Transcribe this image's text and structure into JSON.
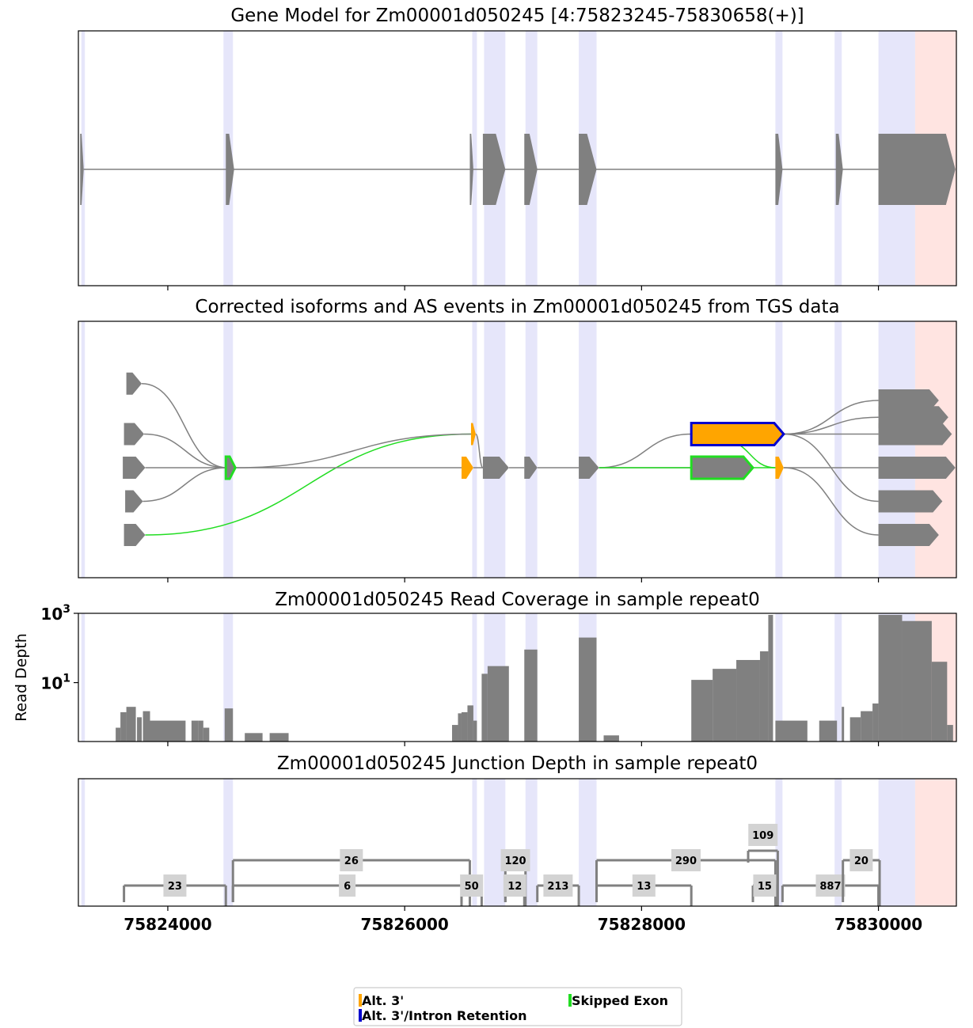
{
  "chart_data": {
    "type": "gene_model_multipanel",
    "x_axis": {
      "xlim": [
        75823245,
        75830658
      ],
      "ticks": [
        75824000,
        75826000,
        75828000,
        75830000
      ],
      "tick_labels": [
        "75824000",
        "75826000",
        "75828000",
        "75830000"
      ]
    },
    "colors": {
      "exon": "#808080",
      "intron_line": "#808080",
      "alt3": "#FFA500",
      "alt3_intron_retention": "#0000CD",
      "skipped_exon": "#22DD22",
      "highlight_blue": "#E6E6FA",
      "highlight_red": "#FFE4E1",
      "junction_label_bg": "#D3D3D3"
    },
    "highlights": [
      {
        "start": 75823270,
        "end": 75823300,
        "color": "blue"
      },
      {
        "start": 75824470,
        "end": 75824550,
        "color": "blue"
      },
      {
        "start": 75826570,
        "end": 75826610,
        "color": "blue"
      },
      {
        "start": 75826670,
        "end": 75826850,
        "color": "blue"
      },
      {
        "start": 75827020,
        "end": 75827120,
        "color": "blue"
      },
      {
        "start": 75827470,
        "end": 75827620,
        "color": "blue"
      },
      {
        "start": 75829130,
        "end": 75829190,
        "color": "blue"
      },
      {
        "start": 75829630,
        "end": 75829690,
        "color": "blue"
      },
      {
        "start": 75830000,
        "end": 75830310,
        "color": "blue"
      },
      {
        "start": 75830310,
        "end": 75830658,
        "color": "red"
      }
    ],
    "panels": [
      {
        "id": "gene_model",
        "title": "Gene Model for Zm00001d050245 [4:75823245-75830658(+)]",
        "type": "gene_track",
        "exons": [
          [
            75823260,
            75823290
          ],
          [
            75824490,
            75824560
          ],
          [
            75826550,
            75826580
          ],
          [
            75826660,
            75826850
          ],
          [
            75827010,
            75827120
          ],
          [
            75827470,
            75827620
          ],
          [
            75829130,
            75829190
          ],
          [
            75829640,
            75829700
          ],
          [
            75830000,
            75830650
          ]
        ]
      },
      {
        "id": "isoforms",
        "title": "Corrected isoforms and AS events in Zm00001d050245 from TGS data",
        "type": "isoform_track",
        "features": [
          {
            "start": 75823650,
            "end": 75823780,
            "row": -2.5,
            "kind": "exon"
          },
          {
            "start": 75823630,
            "end": 75823800,
            "row": -1.0,
            "kind": "exon"
          },
          {
            "start": 75823620,
            "end": 75823810,
            "row": 0.0,
            "kind": "exon"
          },
          {
            "start": 75823640,
            "end": 75823790,
            "row": 1.0,
            "kind": "exon"
          },
          {
            "start": 75823630,
            "end": 75823810,
            "row": 2.0,
            "kind": "exon"
          },
          {
            "start": 75824490,
            "end": 75824570,
            "row": 0.0,
            "kind": "skipped"
          },
          {
            "start": 75826560,
            "end": 75826600,
            "row": -1.0,
            "kind": "alt3"
          },
          {
            "start": 75826480,
            "end": 75826580,
            "row": 0.0,
            "kind": "alt3"
          },
          {
            "start": 75826660,
            "end": 75826880,
            "row": 0.0,
            "kind": "exon"
          },
          {
            "start": 75827010,
            "end": 75827120,
            "row": 0.0,
            "kind": "exon"
          },
          {
            "start": 75827470,
            "end": 75827640,
            "row": 0.0,
            "kind": "exon"
          },
          {
            "start": 75828420,
            "end": 75829200,
            "row": -1.0,
            "kind": "alt3_ir"
          },
          {
            "start": 75828420,
            "end": 75828940,
            "row": 0.0,
            "kind": "skipped"
          },
          {
            "start": 75829130,
            "end": 75829200,
            "row": 0.0,
            "kind": "alt3"
          },
          {
            "start": 75830000,
            "end": 75830510,
            "row": -2.0,
            "kind": "exon"
          },
          {
            "start": 75830000,
            "end": 75830590,
            "row": -1.5,
            "kind": "exon"
          },
          {
            "start": 75830000,
            "end": 75830620,
            "row": -1.0,
            "kind": "exon"
          },
          {
            "start": 75830000,
            "end": 75830650,
            "row": 0.0,
            "kind": "exon"
          },
          {
            "start": 75830000,
            "end": 75830540,
            "row": 1.0,
            "kind": "exon"
          },
          {
            "start": 75830000,
            "end": 75830510,
            "row": 2.0,
            "kind": "exon"
          }
        ],
        "connections": [
          {
            "x1": 75823780,
            "row1": -2.5,
            "x2": 75824500,
            "row2": 0.0,
            "kind": "exon"
          },
          {
            "x1": 75823800,
            "row1": -1.0,
            "x2": 75824500,
            "row2": 0.0,
            "kind": "exon"
          },
          {
            "x1": 75823810,
            "row1": 0.0,
            "x2": 75824500,
            "row2": 0.0,
            "kind": "exon"
          },
          {
            "x1": 75823790,
            "row1": 1.0,
            "x2": 75824500,
            "row2": 0.0,
            "kind": "exon"
          },
          {
            "x1": 75823810,
            "row1": 2.0,
            "x2": 75826560,
            "row2": -1.0,
            "kind": "skipped"
          },
          {
            "x1": 75824570,
            "row1": 0.0,
            "x2": 75826560,
            "row2": -1.0,
            "kind": "exon"
          },
          {
            "x1": 75824570,
            "row1": 0.0,
            "x2": 75826480,
            "row2": 0.0,
            "kind": "exon"
          },
          {
            "x1": 75826600,
            "row1": -1.0,
            "x2": 75826660,
            "row2": 0.0,
            "kind": "exon"
          },
          {
            "x1": 75826580,
            "row1": 0.0,
            "x2": 75826660,
            "row2": 0.0,
            "kind": "exon"
          },
          {
            "x1": 75826880,
            "row1": 0.0,
            "x2": 75827010,
            "row2": 0.0,
            "kind": "exon"
          },
          {
            "x1": 75827120,
            "row1": 0.0,
            "x2": 75827470,
            "row2": 0.0,
            "kind": "exon"
          },
          {
            "x1": 75827640,
            "row1": 0.0,
            "x2": 75828420,
            "row2": -1.0,
            "kind": "exon"
          },
          {
            "x1": 75827640,
            "row1": 0.0,
            "x2": 75828420,
            "row2": 0.0,
            "kind": "exon"
          },
          {
            "x1": 75827640,
            "row1": 0.0,
            "x2": 75829130,
            "row2": 0.0,
            "kind": "skipped"
          },
          {
            "x1": 75828700,
            "row1": -0.8,
            "x2": 75829130,
            "row2": 0.0,
            "kind": "skipped"
          },
          {
            "x1": 75829200,
            "row1": -1.0,
            "x2": 75830000,
            "row2": -2.0,
            "kind": "exon"
          },
          {
            "x1": 75829200,
            "row1": -1.0,
            "x2": 75830000,
            "row2": -1.5,
            "kind": "exon"
          },
          {
            "x1": 75829200,
            "row1": -1.0,
            "x2": 75830000,
            "row2": -1.0,
            "kind": "exon"
          },
          {
            "x1": 75829200,
            "row1": -1.0,
            "x2": 75830000,
            "row2": 1.0,
            "kind": "exon"
          },
          {
            "x1": 75829200,
            "row1": 0.0,
            "x2": 75830000,
            "row2": 0.0,
            "kind": "exon"
          },
          {
            "x1": 75829200,
            "row1": 0.0,
            "x2": 75830000,
            "row2": 2.0,
            "kind": "exon"
          }
        ]
      },
      {
        "id": "coverage",
        "title": "Zm00001d050245 Read Coverage in sample repeat0",
        "type": "area",
        "ylabel": "Read Depth",
        "yscale": "log",
        "ylim_log10": [
          -0.7,
          3.0
        ],
        "y_tick_labels": [
          {
            "base": "10",
            "exp": "3",
            "log": 3
          },
          {
            "base": "10",
            "exp": "1",
            "log": 1
          }
        ],
        "segments": [
          [
            75823560,
            75823600,
            0.5
          ],
          [
            75823600,
            75823650,
            1.4
          ],
          [
            75823650,
            75823730,
            2.0
          ],
          [
            75823740,
            75823780,
            1.0
          ],
          [
            75823790,
            75823850,
            1.5
          ],
          [
            75823850,
            75824150,
            0.8
          ],
          [
            75824200,
            75824260,
            0.8
          ],
          [
            75824260,
            75824300,
            0.8
          ],
          [
            75824300,
            75824350,
            0.5
          ],
          [
            75824480,
            75824550,
            1.8
          ],
          [
            75824650,
            75824800,
            0.35
          ],
          [
            75824860,
            75825020,
            0.35
          ],
          [
            75826400,
            75826450,
            0.6
          ],
          [
            75826450,
            75826480,
            1.3
          ],
          [
            75826480,
            75826530,
            1.4
          ],
          [
            75826530,
            75826580,
            2.2
          ],
          [
            75826580,
            75826610,
            0.8
          ],
          [
            75826650,
            75826700,
            18
          ],
          [
            75826700,
            75826880,
            30
          ],
          [
            75827010,
            75827120,
            90
          ],
          [
            75827470,
            75827620,
            200
          ],
          [
            75827680,
            75827810,
            0.3
          ],
          [
            75828420,
            75828600,
            12
          ],
          [
            75828600,
            75828800,
            25
          ],
          [
            75828800,
            75829000,
            45
          ],
          [
            75829000,
            75829070,
            80
          ],
          [
            75829070,
            75829110,
            900
          ],
          [
            75829130,
            75829400,
            0.8
          ],
          [
            75829500,
            75829650,
            0.8
          ],
          [
            75829690,
            75829710,
            2.0
          ],
          [
            75829760,
            75829850,
            1.0
          ],
          [
            75829850,
            75829950,
            1.5
          ],
          [
            75829950,
            75830000,
            2.5
          ],
          [
            75830000,
            75830200,
            1000
          ],
          [
            75830200,
            75830450,
            600
          ],
          [
            75830450,
            75830580,
            40
          ],
          [
            75830580,
            75830630,
            0.6
          ]
        ]
      },
      {
        "id": "junctions",
        "title": "Zm00001d050245 Junction Depth in sample repeat0",
        "type": "sashimi",
        "junctions": [
          {
            "start": 75823630,
            "end": 75824490,
            "count": "23",
            "level": 1
          },
          {
            "start": 75824550,
            "end": 75826550,
            "count": "26",
            "level": 2
          },
          {
            "start": 75824550,
            "end": 75826480,
            "count": "6",
            "level": 1
          },
          {
            "start": 75826480,
            "end": 75826650,
            "count": "50",
            "level": 1
          },
          {
            "start": 75826850,
            "end": 75827020,
            "count": "120",
            "level": 2
          },
          {
            "start": 75826850,
            "end": 75827010,
            "count": "12",
            "level": 1
          },
          {
            "start": 75827120,
            "end": 75827470,
            "count": "213",
            "level": 1
          },
          {
            "start": 75827620,
            "end": 75829130,
            "count": "290",
            "level": 2
          },
          {
            "start": 75827620,
            "end": 75828420,
            "count": "13",
            "level": 1
          },
          {
            "start": 75828900,
            "end": 75829150,
            "count": "109",
            "level": 3
          },
          {
            "start": 75828940,
            "end": 75829140,
            "count": "15",
            "level": 1
          },
          {
            "start": 75829190,
            "end": 75830000,
            "count": "887",
            "level": 1
          },
          {
            "start": 75829700,
            "end": 75830010,
            "count": "20",
            "level": 2
          }
        ]
      }
    ],
    "legend": [
      {
        "label": "Alt. 3'",
        "color": "#FFA500"
      },
      {
        "label": "Alt. 3'/Intron Retention",
        "color": "#0000CD"
      },
      {
        "label": "Skipped Exon",
        "color": "#22DD22"
      }
    ]
  }
}
